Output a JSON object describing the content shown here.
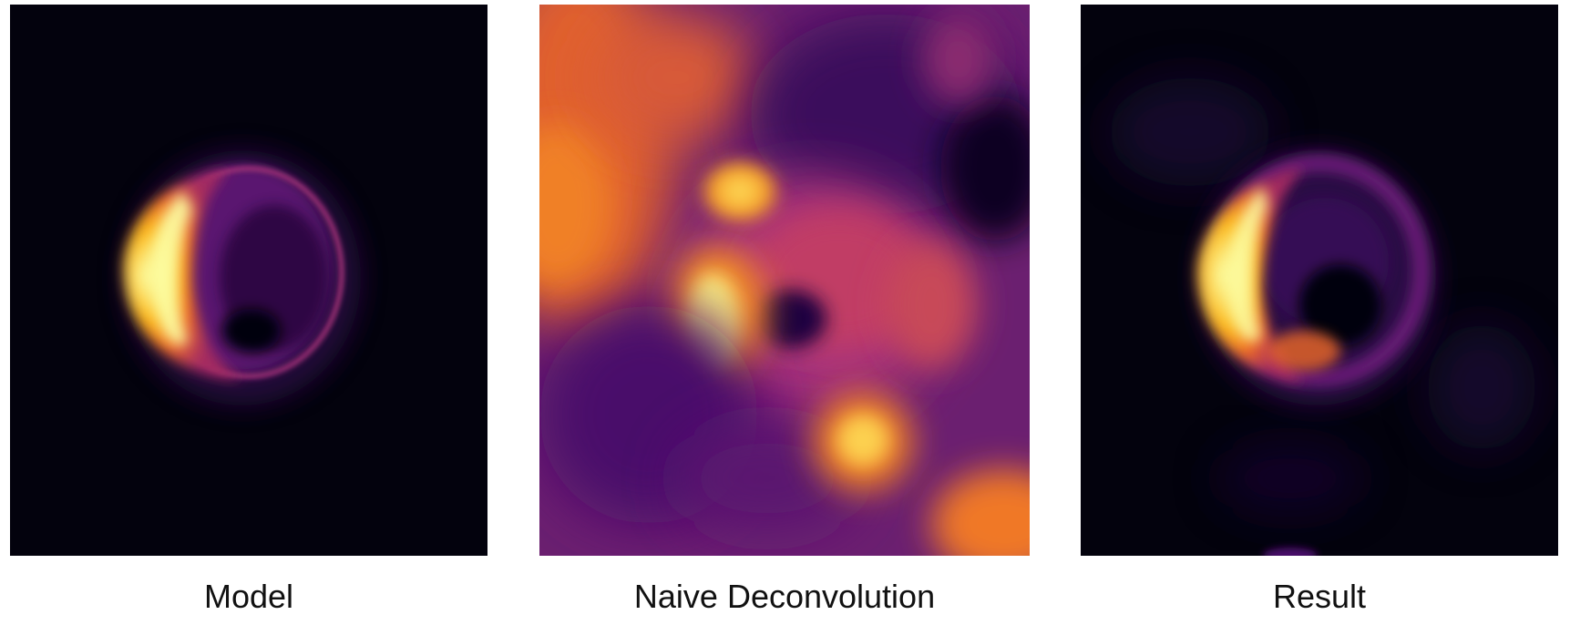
{
  "panels": [
    {
      "id": "model",
      "caption": "Model"
    },
    {
      "id": "naive",
      "caption": "Naive Deconvolution"
    },
    {
      "id": "result",
      "caption": "Result"
    }
  ],
  "colormap": {
    "background_dark": "#03020d",
    "purple": "#4a0c6b",
    "magenta": "#a52c60",
    "orange": "#ed6925",
    "yellow": "#fbb61a",
    "bright": "#fcffa4"
  }
}
